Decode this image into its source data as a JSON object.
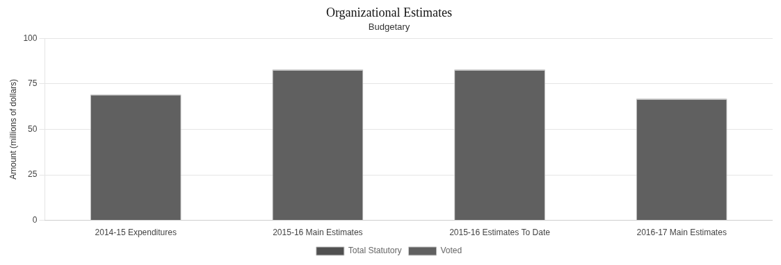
{
  "chart_data": {
    "type": "bar",
    "stacked": true,
    "title": "Organizational Estimates",
    "subtitle": "Budgetary",
    "ylabel": "Amount (millions of dollars)",
    "categories": [
      "2014-15 Expenditures",
      "2015-16 Main Estimates",
      "2015-16 Estimates To Date",
      "2016-17 Main Estimates"
    ],
    "series": [
      {
        "name": "Voted",
        "color": "#606060",
        "values": [
          69.0,
          82.5,
          82.5,
          66.5
        ]
      },
      {
        "name": "Total Statutory",
        "color": "#505050",
        "values": [
          0.3,
          0.3,
          0.3,
          0.3
        ]
      }
    ],
    "ylim": [
      0,
      100
    ],
    "yticks": [
      0,
      25,
      50,
      75,
      100
    ],
    "grid": true,
    "legend": "bottom"
  }
}
